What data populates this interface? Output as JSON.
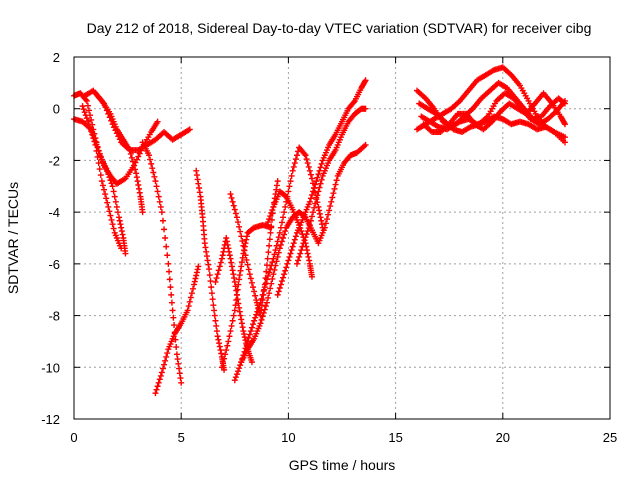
{
  "chart_data": {
    "type": "scatter",
    "title": "Day 212 of 2018, Sidereal Day-to-day VTEC variation (SDTVAR) for receiver cibg",
    "xlabel": "GPS time / hours",
    "ylabel": "SDTVAR / TECUs",
    "xlim": [
      0,
      25
    ],
    "ylim": [
      -12,
      2
    ],
    "xticks": [
      0,
      5,
      10,
      15,
      20,
      25
    ],
    "yticks": [
      -12,
      -10,
      -8,
      -6,
      -4,
      -2,
      0,
      2
    ],
    "grid": true,
    "marker": "plus",
    "color": "#ff0000",
    "series": [
      {
        "name": "arc-1",
        "points": [
          [
            0.0,
            0.5
          ],
          [
            0.3,
            0.6
          ],
          [
            0.6,
            0.3
          ],
          [
            0.9,
            -0.8
          ],
          [
            1.2,
            -1.8
          ],
          [
            1.5,
            -2.3
          ],
          [
            1.8,
            -3.0
          ],
          [
            2.1,
            -4.2
          ],
          [
            2.3,
            -5.0
          ],
          [
            2.4,
            -5.6
          ]
        ]
      },
      {
        "name": "arc-2",
        "points": [
          [
            0.0,
            -0.4
          ],
          [
            0.4,
            -0.5
          ],
          [
            0.8,
            -0.8
          ],
          [
            1.1,
            -1.5
          ],
          [
            1.4,
            -2.2
          ],
          [
            1.7,
            -2.6
          ],
          [
            2.0,
            -2.9
          ],
          [
            2.4,
            -2.7
          ],
          [
            2.8,
            -2.2
          ],
          [
            3.2,
            -1.5
          ],
          [
            3.6,
            -0.9
          ],
          [
            3.9,
            -0.5
          ]
        ]
      },
      {
        "name": "arc-3",
        "points": [
          [
            0.5,
            0.5
          ],
          [
            0.9,
            0.7
          ],
          [
            1.3,
            0.3
          ],
          [
            1.7,
            -0.2
          ],
          [
            2.0,
            -0.8
          ],
          [
            2.3,
            -1.2
          ],
          [
            2.6,
            -1.6
          ],
          [
            2.9,
            -2.5
          ],
          [
            3.1,
            -3.4
          ],
          [
            3.2,
            -4.0
          ]
        ]
      },
      {
        "name": "arc-4",
        "points": [
          [
            1.0,
            0.6
          ],
          [
            1.4,
            0.2
          ],
          [
            1.8,
            -0.6
          ],
          [
            2.2,
            -1.3
          ],
          [
            2.6,
            -1.6
          ],
          [
            3.0,
            -1.6
          ],
          [
            3.4,
            -1.4
          ],
          [
            3.8,
            -1.2
          ],
          [
            4.2,
            -0.9
          ],
          [
            4.6,
            -1.2
          ],
          [
            5.0,
            -1.0
          ],
          [
            5.4,
            -0.8
          ]
        ]
      },
      {
        "name": "arc-5",
        "points": [
          [
            0.4,
            0.1
          ],
          [
            0.7,
            -0.6
          ],
          [
            1.0,
            -1.4
          ],
          [
            1.3,
            -2.8
          ],
          [
            1.6,
            -3.8
          ],
          [
            1.9,
            -4.8
          ],
          [
            2.2,
            -5.4
          ]
        ]
      },
      {
        "name": "arc-6",
        "points": [
          [
            3.2,
            -1.3
          ],
          [
            3.5,
            -1.8
          ],
          [
            3.8,
            -2.8
          ],
          [
            4.1,
            -4.0
          ],
          [
            4.4,
            -6.0
          ],
          [
            4.6,
            -7.8
          ],
          [
            4.8,
            -9.5
          ],
          [
            5.0,
            -10.6
          ]
        ]
      },
      {
        "name": "arc-7",
        "points": [
          [
            3.8,
            -11.0
          ],
          [
            4.1,
            -10.2
          ],
          [
            4.4,
            -9.3
          ],
          [
            4.7,
            -8.7
          ],
          [
            5.0,
            -8.3
          ],
          [
            5.3,
            -7.8
          ],
          [
            5.6,
            -6.8
          ],
          [
            5.8,
            -6.1
          ]
        ]
      },
      {
        "name": "arc-8",
        "points": [
          [
            5.7,
            -2.4
          ],
          [
            5.9,
            -3.4
          ],
          [
            6.0,
            -4.2
          ],
          [
            6.1,
            -5.2
          ],
          [
            6.3,
            -6.2
          ],
          [
            6.5,
            -7.6
          ],
          [
            6.7,
            -8.8
          ],
          [
            6.9,
            -9.6
          ],
          [
            7.0,
            -10.1
          ]
        ]
      },
      {
        "name": "arc-9",
        "points": [
          [
            6.6,
            -6.7
          ],
          [
            6.9,
            -5.8
          ],
          [
            7.1,
            -5.0
          ],
          [
            7.3,
            -5.8
          ],
          [
            7.5,
            -6.7
          ],
          [
            7.7,
            -7.7
          ],
          [
            7.9,
            -8.6
          ],
          [
            8.1,
            -9.3
          ],
          [
            8.3,
            -9.8
          ]
        ]
      },
      {
        "name": "arc-10",
        "points": [
          [
            6.9,
            -10.0
          ],
          [
            7.2,
            -9.0
          ],
          [
            7.5,
            -7.8
          ],
          [
            7.7,
            -6.6
          ],
          [
            7.9,
            -5.6
          ],
          [
            8.1,
            -4.8
          ],
          [
            8.4,
            -4.6
          ],
          [
            8.8,
            -4.5
          ],
          [
            9.2,
            -4.6
          ]
        ]
      },
      {
        "name": "arc-11",
        "points": [
          [
            7.5,
            -10.5
          ],
          [
            7.8,
            -9.8
          ],
          [
            8.1,
            -9.0
          ],
          [
            8.4,
            -8.2
          ],
          [
            8.7,
            -7.5
          ],
          [
            9.0,
            -6.6
          ],
          [
            9.3,
            -5.8
          ],
          [
            9.6,
            -4.8
          ],
          [
            9.9,
            -3.6
          ],
          [
            10.2,
            -2.4
          ],
          [
            10.5,
            -1.5
          ],
          [
            10.8,
            -1.8
          ],
          [
            11.1,
            -2.7
          ],
          [
            11.4,
            -3.8
          ],
          [
            11.6,
            -4.6
          ]
        ]
      },
      {
        "name": "arc-12",
        "points": [
          [
            7.8,
            -9.8
          ],
          [
            8.1,
            -9.3
          ],
          [
            8.4,
            -8.9
          ],
          [
            8.7,
            -8.3
          ],
          [
            9.0,
            -7.5
          ],
          [
            9.3,
            -6.4
          ],
          [
            9.6,
            -5.4
          ],
          [
            9.9,
            -4.6
          ],
          [
            10.2,
            -4.2
          ],
          [
            10.5,
            -4.0
          ],
          [
            10.8,
            -4.2
          ],
          [
            11.1,
            -4.7
          ],
          [
            11.4,
            -5.2
          ],
          [
            11.7,
            -4.6
          ],
          [
            12.0,
            -3.6
          ],
          [
            12.3,
            -2.6
          ],
          [
            12.6,
            -2.1
          ],
          [
            12.9,
            -1.8
          ],
          [
            13.2,
            -1.7
          ],
          [
            13.6,
            -1.4
          ]
        ]
      },
      {
        "name": "arc-13",
        "points": [
          [
            7.3,
            -3.3
          ],
          [
            7.6,
            -4.2
          ],
          [
            7.9,
            -5.3
          ],
          [
            8.2,
            -6.4
          ],
          [
            8.5,
            -7.4
          ],
          [
            8.7,
            -8.0
          ],
          [
            8.9,
            -6.8
          ],
          [
            9.1,
            -5.3
          ],
          [
            9.3,
            -3.8
          ],
          [
            9.5,
            -2.8
          ]
        ]
      },
      {
        "name": "arc-14",
        "points": [
          [
            9.0,
            -4.5
          ],
          [
            9.3,
            -3.8
          ],
          [
            9.6,
            -3.2
          ],
          [
            9.9,
            -3.4
          ],
          [
            10.2,
            -3.9
          ],
          [
            10.5,
            -4.5
          ],
          [
            10.8,
            -5.2
          ],
          [
            11.0,
            -6.0
          ],
          [
            11.1,
            -6.5
          ]
        ]
      },
      {
        "name": "arc-15",
        "points": [
          [
            9.5,
            -7.2
          ],
          [
            9.8,
            -6.4
          ],
          [
            10.1,
            -5.6
          ],
          [
            10.4,
            -4.8
          ],
          [
            10.7,
            -4.2
          ],
          [
            11.0,
            -3.6
          ],
          [
            11.3,
            -2.8
          ],
          [
            11.6,
            -2.0
          ],
          [
            11.9,
            -1.4
          ],
          [
            12.2,
            -1.0
          ],
          [
            12.5,
            -0.5
          ],
          [
            12.8,
            0.0
          ],
          [
            13.1,
            0.3
          ],
          [
            13.4,
            0.8
          ],
          [
            13.6,
            1.1
          ]
        ]
      },
      {
        "name": "arc-16",
        "points": [
          [
            10.4,
            -6.0
          ],
          [
            10.7,
            -5.2
          ],
          [
            11.0,
            -4.5
          ],
          [
            11.3,
            -3.5
          ],
          [
            11.6,
            -2.6
          ],
          [
            11.9,
            -2.0
          ],
          [
            12.2,
            -1.6
          ],
          [
            12.5,
            -1.0
          ],
          [
            12.8,
            -0.5
          ],
          [
            13.1,
            -0.2
          ],
          [
            13.4,
            0.0
          ],
          [
            13.6,
            0.0
          ]
        ]
      },
      {
        "name": "arc-17",
        "points": [
          [
            16.0,
            0.7
          ],
          [
            16.4,
            0.4
          ],
          [
            16.8,
            0.0
          ],
          [
            17.2,
            -0.5
          ],
          [
            17.6,
            -0.7
          ],
          [
            18.0,
            -0.5
          ],
          [
            18.4,
            -0.4
          ],
          [
            18.8,
            -0.6
          ],
          [
            19.2,
            -0.5
          ],
          [
            19.6,
            -0.3
          ],
          [
            20.0,
            -0.4
          ],
          [
            20.4,
            -0.6
          ],
          [
            20.8,
            -0.5
          ],
          [
            21.2,
            -0.6
          ],
          [
            21.6,
            -0.8
          ],
          [
            22.0,
            -0.7
          ],
          [
            22.4,
            -0.9
          ],
          [
            22.9,
            -1.3
          ]
        ]
      },
      {
        "name": "arc-18",
        "points": [
          [
            16.0,
            -0.8
          ],
          [
            16.4,
            -0.6
          ],
          [
            16.8,
            -0.4
          ],
          [
            17.2,
            -0.2
          ],
          [
            17.6,
            0.0
          ],
          [
            18.0,
            0.3
          ],
          [
            18.4,
            0.7
          ],
          [
            18.8,
            1.1
          ],
          [
            19.2,
            1.3
          ],
          [
            19.6,
            1.5
          ],
          [
            20.0,
            1.6
          ],
          [
            20.4,
            1.3
          ],
          [
            20.8,
            0.9
          ],
          [
            21.2,
            0.3
          ],
          [
            21.6,
            -0.3
          ],
          [
            22.0,
            -0.7
          ],
          [
            22.4,
            -0.9
          ],
          [
            22.9,
            -1.1
          ]
        ]
      },
      {
        "name": "arc-19",
        "points": [
          [
            16.2,
            -0.3
          ],
          [
            16.6,
            -0.5
          ],
          [
            17.0,
            -0.7
          ],
          [
            17.4,
            -0.8
          ],
          [
            17.8,
            -0.6
          ],
          [
            18.2,
            -0.3
          ],
          [
            18.6,
            0.0
          ],
          [
            19.0,
            0.4
          ],
          [
            19.4,
            0.7
          ],
          [
            19.8,
            1.0
          ],
          [
            20.2,
            0.8
          ],
          [
            20.6,
            0.4
          ],
          [
            21.0,
            0.0
          ],
          [
            21.4,
            -0.4
          ],
          [
            21.8,
            -0.3
          ],
          [
            22.2,
            0.1
          ],
          [
            22.6,
            0.4
          ],
          [
            22.9,
            0.2
          ]
        ]
      },
      {
        "name": "arc-20",
        "points": [
          [
            16.1,
            0.2
          ],
          [
            16.5,
            0.0
          ],
          [
            16.9,
            -0.2
          ],
          [
            17.3,
            -0.5
          ],
          [
            17.7,
            -0.8
          ],
          [
            18.1,
            -0.9
          ],
          [
            18.5,
            -0.7
          ],
          [
            18.9,
            -0.6
          ],
          [
            19.3,
            -0.3
          ],
          [
            19.7,
            0.3
          ],
          [
            20.1,
            0.6
          ],
          [
            20.5,
            0.4
          ],
          [
            20.9,
            0.0
          ],
          [
            21.3,
            -0.4
          ],
          [
            21.7,
            -0.6
          ],
          [
            22.1,
            -0.4
          ],
          [
            22.5,
            -0.1
          ],
          [
            22.9,
            0.3
          ]
        ]
      },
      {
        "name": "arc-21",
        "points": [
          [
            16.3,
            -0.6
          ],
          [
            16.7,
            -0.9
          ],
          [
            17.1,
            -0.9
          ],
          [
            17.5,
            -0.6
          ],
          [
            17.9,
            -0.2
          ],
          [
            18.3,
            -0.2
          ],
          [
            18.7,
            -0.6
          ],
          [
            19.1,
            -0.8
          ],
          [
            19.5,
            -0.5
          ],
          [
            19.9,
            -0.1
          ],
          [
            20.3,
            0.2
          ],
          [
            20.7,
            0.0
          ],
          [
            21.1,
            -0.2
          ],
          [
            21.5,
            0.2
          ],
          [
            21.9,
            0.6
          ],
          [
            22.3,
            0.2
          ],
          [
            22.7,
            -0.3
          ],
          [
            22.9,
            -0.6
          ]
        ]
      }
    ]
  }
}
